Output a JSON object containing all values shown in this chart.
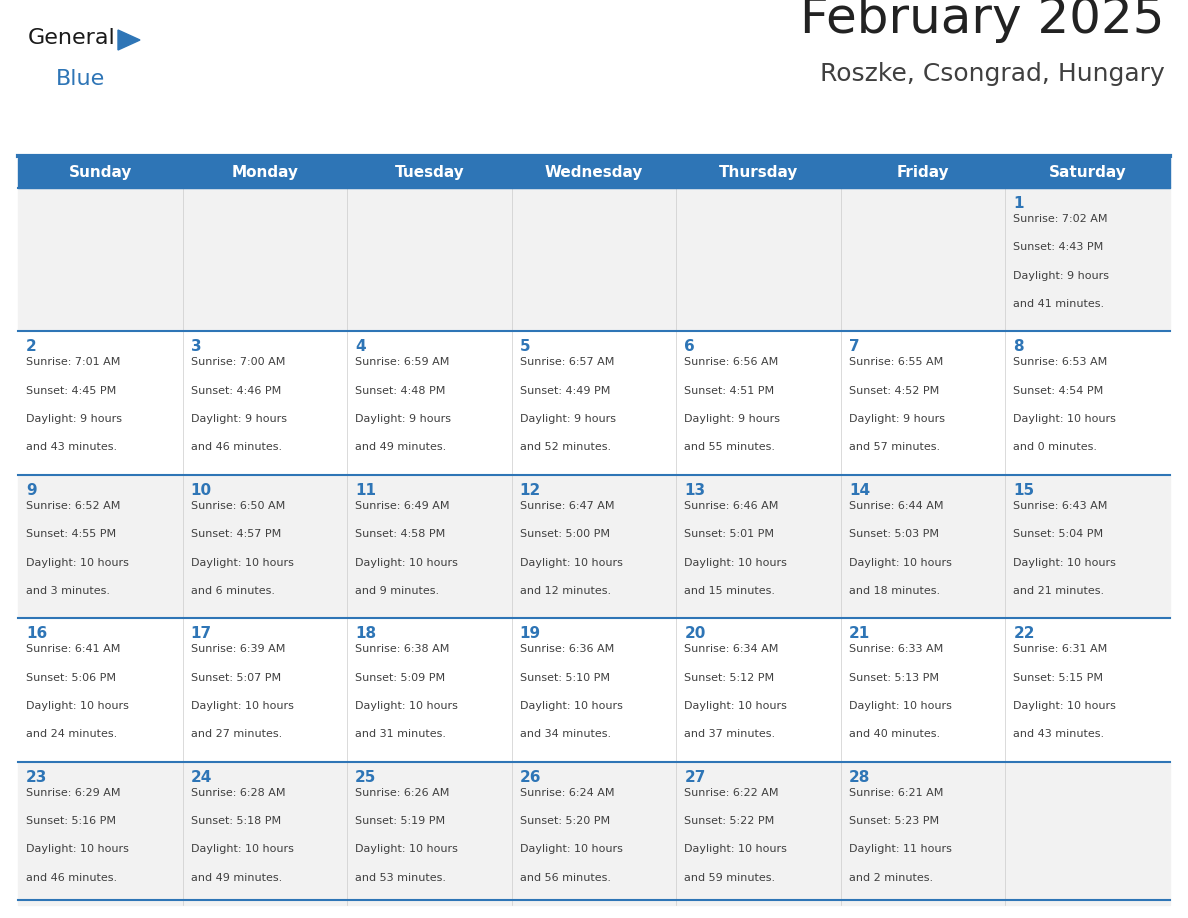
{
  "title": "February 2025",
  "subtitle": "Roszke, Csongrad, Hungary",
  "header_bg": "#2E75B6",
  "header_text": "#FFFFFF",
  "header_days": [
    "Sunday",
    "Monday",
    "Tuesday",
    "Wednesday",
    "Thursday",
    "Friday",
    "Saturday"
  ],
  "cell_bg_light": "#F2F2F2",
  "cell_bg_white": "#FFFFFF",
  "cell_border_color": "#2E75B6",
  "day_number_color": "#2E75B6",
  "info_text_color": "#404040",
  "title_color": "#222222",
  "subtitle_color": "#404040",
  "logo_general_color": "#1A1A1A",
  "logo_blue_color": "#2E75B6",
  "calendar_data": [
    [
      null,
      null,
      null,
      null,
      null,
      null,
      1
    ],
    [
      2,
      3,
      4,
      5,
      6,
      7,
      8
    ],
    [
      9,
      10,
      11,
      12,
      13,
      14,
      15
    ],
    [
      16,
      17,
      18,
      19,
      20,
      21,
      22
    ],
    [
      23,
      24,
      25,
      26,
      27,
      28,
      null
    ]
  ],
  "sunrise_sunset": {
    "1": [
      "Sunrise: 7:02 AM",
      "Sunset: 4:43 PM",
      "Daylight: 9 hours",
      "and 41 minutes."
    ],
    "2": [
      "Sunrise: 7:01 AM",
      "Sunset: 4:45 PM",
      "Daylight: 9 hours",
      "and 43 minutes."
    ],
    "3": [
      "Sunrise: 7:00 AM",
      "Sunset: 4:46 PM",
      "Daylight: 9 hours",
      "and 46 minutes."
    ],
    "4": [
      "Sunrise: 6:59 AM",
      "Sunset: 4:48 PM",
      "Daylight: 9 hours",
      "and 49 minutes."
    ],
    "5": [
      "Sunrise: 6:57 AM",
      "Sunset: 4:49 PM",
      "Daylight: 9 hours",
      "and 52 minutes."
    ],
    "6": [
      "Sunrise: 6:56 AM",
      "Sunset: 4:51 PM",
      "Daylight: 9 hours",
      "and 55 minutes."
    ],
    "7": [
      "Sunrise: 6:55 AM",
      "Sunset: 4:52 PM",
      "Daylight: 9 hours",
      "and 57 minutes."
    ],
    "8": [
      "Sunrise: 6:53 AM",
      "Sunset: 4:54 PM",
      "Daylight: 10 hours",
      "and 0 minutes."
    ],
    "9": [
      "Sunrise: 6:52 AM",
      "Sunset: 4:55 PM",
      "Daylight: 10 hours",
      "and 3 minutes."
    ],
    "10": [
      "Sunrise: 6:50 AM",
      "Sunset: 4:57 PM",
      "Daylight: 10 hours",
      "and 6 minutes."
    ],
    "11": [
      "Sunrise: 6:49 AM",
      "Sunset: 4:58 PM",
      "Daylight: 10 hours",
      "and 9 minutes."
    ],
    "12": [
      "Sunrise: 6:47 AM",
      "Sunset: 5:00 PM",
      "Daylight: 10 hours",
      "and 12 minutes."
    ],
    "13": [
      "Sunrise: 6:46 AM",
      "Sunset: 5:01 PM",
      "Daylight: 10 hours",
      "and 15 minutes."
    ],
    "14": [
      "Sunrise: 6:44 AM",
      "Sunset: 5:03 PM",
      "Daylight: 10 hours",
      "and 18 minutes."
    ],
    "15": [
      "Sunrise: 6:43 AM",
      "Sunset: 5:04 PM",
      "Daylight: 10 hours",
      "and 21 minutes."
    ],
    "16": [
      "Sunrise: 6:41 AM",
      "Sunset: 5:06 PM",
      "Daylight: 10 hours",
      "and 24 minutes."
    ],
    "17": [
      "Sunrise: 6:39 AM",
      "Sunset: 5:07 PM",
      "Daylight: 10 hours",
      "and 27 minutes."
    ],
    "18": [
      "Sunrise: 6:38 AM",
      "Sunset: 5:09 PM",
      "Daylight: 10 hours",
      "and 31 minutes."
    ],
    "19": [
      "Sunrise: 6:36 AM",
      "Sunset: 5:10 PM",
      "Daylight: 10 hours",
      "and 34 minutes."
    ],
    "20": [
      "Sunrise: 6:34 AM",
      "Sunset: 5:12 PM",
      "Daylight: 10 hours",
      "and 37 minutes."
    ],
    "21": [
      "Sunrise: 6:33 AM",
      "Sunset: 5:13 PM",
      "Daylight: 10 hours",
      "and 40 minutes."
    ],
    "22": [
      "Sunrise: 6:31 AM",
      "Sunset: 5:15 PM",
      "Daylight: 10 hours",
      "and 43 minutes."
    ],
    "23": [
      "Sunrise: 6:29 AM",
      "Sunset: 5:16 PM",
      "Daylight: 10 hours",
      "and 46 minutes."
    ],
    "24": [
      "Sunrise: 6:28 AM",
      "Sunset: 5:18 PM",
      "Daylight: 10 hours",
      "and 49 minutes."
    ],
    "25": [
      "Sunrise: 6:26 AM",
      "Sunset: 5:19 PM",
      "Daylight: 10 hours",
      "and 53 minutes."
    ],
    "26": [
      "Sunrise: 6:24 AM",
      "Sunset: 5:20 PM",
      "Daylight: 10 hours",
      "and 56 minutes."
    ],
    "27": [
      "Sunrise: 6:22 AM",
      "Sunset: 5:22 PM",
      "Daylight: 10 hours",
      "and 59 minutes."
    ],
    "28": [
      "Sunrise: 6:21 AM",
      "Sunset: 5:23 PM",
      "Daylight: 11 hours",
      "and 2 minutes."
    ]
  }
}
